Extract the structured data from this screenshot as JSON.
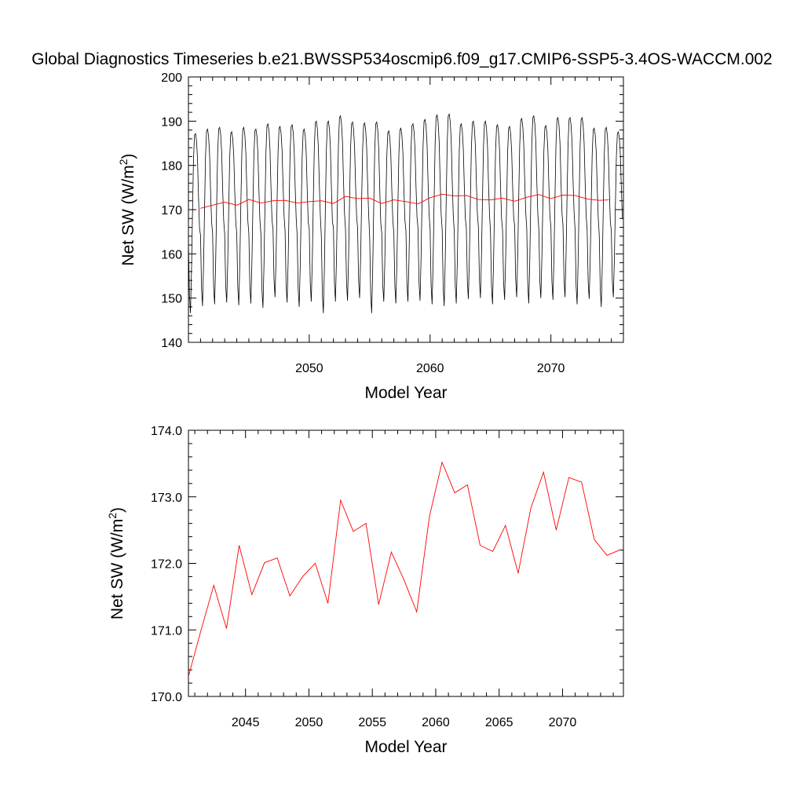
{
  "figure": {
    "title": "Global Diagnostics Timeseries b.e21.BWSSP534oscmip6.f09_g17.CMIP6-SSP5-3.4OS-WACCM.002"
  },
  "chart_data": [
    {
      "type": "line",
      "panel": "top",
      "xlabel": "Model Year",
      "ylabel_main": "Net SW (W/m",
      "ylabel_sup": "2",
      "ylabel_end": ")",
      "xlim": [
        2040.0,
        2076.0
      ],
      "ylim": [
        140,
        200
      ],
      "xticks": [
        2050,
        2060,
        2070
      ],
      "xtick_labels": [
        "2050",
        "2060",
        "2070"
      ],
      "yticks": [
        140,
        150,
        160,
        170,
        180,
        190,
        200
      ],
      "ytick_labels": [
        "140",
        "150",
        "160",
        "170",
        "180",
        "190",
        "200"
      ],
      "grid": false,
      "legend": false,
      "series": [
        {
          "kind": "monthly",
          "color": "#000000",
          "x_start": 2040.0,
          "x_step": 0.0833333,
          "annual_max": [
            187.2,
            188.2,
            188.6,
            187.6,
            188.6,
            188.2,
            189.4,
            188.8,
            189.2,
            188.2,
            190.0,
            190.0,
            191.2,
            189.8,
            189.6,
            189.8,
            187.8,
            188.4,
            189.4,
            190.4,
            191.4,
            191.6,
            189.4,
            190.0,
            190.0,
            189.2,
            188.8,
            190.6,
            191.2,
            189.0,
            190.8,
            190.8,
            190.8,
            188.4,
            188.6,
            187.6
          ],
          "annual_min": [
            146.6,
            148.2,
            148.6,
            149.0,
            148.4,
            148.8,
            147.8,
            150.2,
            149.0,
            148.0,
            149.2,
            146.6,
            149.2,
            149.4,
            150.0,
            146.6,
            149.2,
            148.8,
            149.2,
            149.4,
            148.6,
            148.2,
            148.8,
            149.8,
            150.0,
            148.6,
            149.6,
            150.2,
            148.8,
            150.0,
            149.6,
            150.2,
            148.6,
            149.8,
            148.0,
            150.2
          ]
        },
        {
          "kind": "annual",
          "color": "#ff0000",
          "x": [
            2041.0,
            2042.0,
            2043.0,
            2044.0,
            2045.0,
            2046.0,
            2047.0,
            2048.0,
            2049.0,
            2050.0,
            2051.0,
            2052.0,
            2053.0,
            2054.0,
            2055.0,
            2056.0,
            2057.0,
            2058.0,
            2059.0,
            2060.0,
            2061.0,
            2062.0,
            2063.0,
            2064.0,
            2065.0,
            2066.0,
            2067.0,
            2068.0,
            2069.0,
            2070.0,
            2071.0,
            2072.0,
            2073.0,
            2074.0,
            2074.8
          ],
          "values": [
            170.3,
            171.0,
            171.7,
            171.0,
            172.3,
            171.5,
            172.0,
            172.1,
            171.5,
            171.8,
            172.0,
            171.4,
            173.0,
            172.5,
            172.6,
            171.4,
            172.2,
            171.8,
            171.3,
            172.7,
            173.5,
            173.1,
            173.2,
            172.3,
            172.2,
            172.6,
            171.9,
            172.8,
            173.4,
            172.5,
            173.3,
            173.2,
            172.4,
            172.1,
            172.2
          ]
        }
      ]
    },
    {
      "type": "line",
      "panel": "bottom",
      "xlabel": "Model Year",
      "ylabel_main": "Net SW (W/m",
      "ylabel_sup": "2",
      "ylabel_end": ")",
      "xlim": [
        2040.5,
        2074.8
      ],
      "ylim": [
        170.0,
        174.0
      ],
      "xticks": [
        2045,
        2050,
        2055,
        2060,
        2065,
        2070
      ],
      "xtick_labels": [
        "2045",
        "2050",
        "2055",
        "2060",
        "2065",
        "2070"
      ],
      "yticks": [
        170.0,
        171.0,
        172.0,
        173.0,
        174.0
      ],
      "ytick_labels": [
        "170.0",
        "171.0",
        "172.0",
        "173.0",
        "174.0"
      ],
      "grid": false,
      "legend": false,
      "series": [
        {
          "kind": "annual",
          "color": "#ff0000",
          "x": [
            2040.5,
            2041.5,
            2042.5,
            2043.5,
            2044.5,
            2045.5,
            2046.5,
            2047.5,
            2048.5,
            2049.5,
            2050.5,
            2051.5,
            2052.5,
            2053.5,
            2054.5,
            2055.5,
            2056.5,
            2057.5,
            2058.5,
            2059.5,
            2060.5,
            2061.5,
            2062.5,
            2063.5,
            2064.5,
            2065.5,
            2066.5,
            2067.5,
            2068.5,
            2069.5,
            2070.5,
            2071.5,
            2072.5,
            2073.5,
            2074.5
          ],
          "values": [
            170.3,
            171.0,
            171.67,
            171.02,
            172.27,
            171.53,
            172.01,
            172.08,
            171.51,
            171.8,
            172.0,
            171.4,
            172.95,
            172.48,
            172.6,
            171.38,
            172.17,
            171.75,
            171.27,
            172.7,
            173.52,
            173.06,
            173.18,
            172.27,
            172.18,
            172.57,
            171.85,
            172.83,
            173.37,
            172.5,
            173.29,
            173.22,
            172.36,
            172.12,
            172.2
          ]
        }
      ]
    }
  ]
}
